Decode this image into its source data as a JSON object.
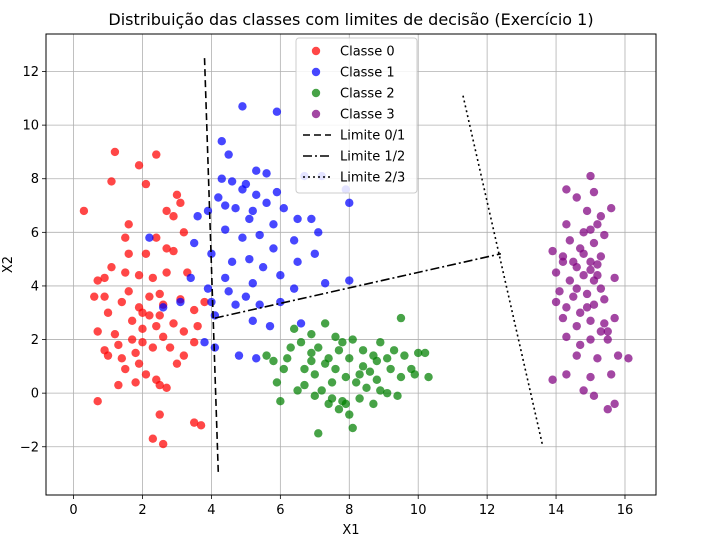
{
  "chart_data": {
    "type": "scatter",
    "title": "Distribuição das classes com limites de decisão (Exercício 1)",
    "xlabel": "X1",
    "ylabel": "X2",
    "xlim": [
      -0.8,
      16.9
    ],
    "ylim": [
      -3.8,
      13.4
    ],
    "xticks": [
      0,
      2,
      4,
      6,
      8,
      10,
      12,
      14,
      16
    ],
    "yticks": [
      -2,
      0,
      2,
      4,
      6,
      8,
      10,
      12
    ],
    "grid": true,
    "legend_position": "top-center",
    "series": [
      {
        "name": "Classe 0",
        "color": "#ff0000",
        "points": [
          [
            0.3,
            6.8
          ],
          [
            1.2,
            9.0
          ],
          [
            1.9,
            8.5
          ],
          [
            2.4,
            8.9
          ],
          [
            1.1,
            7.9
          ],
          [
            2.1,
            7.8
          ],
          [
            3.0,
            7.4
          ],
          [
            2.7,
            6.8
          ],
          [
            1.6,
            6.3
          ],
          [
            1.5,
            5.8
          ],
          [
            2.4,
            5.8
          ],
          [
            2.7,
            5.4
          ],
          [
            2.1,
            5.2
          ],
          [
            1.9,
            4.4
          ],
          [
            1.5,
            4.5
          ],
          [
            1.1,
            4.7
          ],
          [
            0.9,
            4.3
          ],
          [
            0.7,
            4.2
          ],
          [
            0.6,
            3.6
          ],
          [
            2.7,
            4.5
          ],
          [
            2.5,
            3.7
          ],
          [
            2.2,
            3.6
          ],
          [
            1.9,
            3.2
          ],
          [
            1.4,
            3.4
          ],
          [
            1.0,
            3.0
          ],
          [
            0.7,
            2.3
          ],
          [
            1.2,
            2.2
          ],
          [
            1.7,
            2.7
          ],
          [
            2.0,
            2.4
          ],
          [
            2.5,
            2.9
          ],
          [
            2.9,
            2.6
          ],
          [
            3.2,
            2.3
          ],
          [
            2.6,
            2.1
          ],
          [
            2.3,
            1.7
          ],
          [
            1.8,
            1.5
          ],
          [
            1.4,
            1.3
          ],
          [
            0.9,
            1.6
          ],
          [
            1.0,
            1.4
          ],
          [
            1.5,
            0.9
          ],
          [
            2.1,
            0.7
          ],
          [
            2.5,
            0.3
          ],
          [
            2.7,
            0.2
          ],
          [
            1.8,
            0.4
          ],
          [
            1.3,
            0.3
          ],
          [
            0.7,
            -0.3
          ],
          [
            2.5,
            -0.8
          ],
          [
            2.3,
            -1.7
          ],
          [
            2.6,
            -1.9
          ],
          [
            3.5,
            -1.1
          ],
          [
            3.7,
            -1.2
          ],
          [
            3.5,
            1.9
          ],
          [
            3.2,
            1.4
          ],
          [
            3.6,
            2.5
          ],
          [
            3.5,
            3.1
          ],
          [
            3.1,
            3.5
          ],
          [
            3.3,
            4.5
          ],
          [
            2.9,
            5.3
          ],
          [
            3.2,
            6.0
          ],
          [
            2.9,
            6.6
          ],
          [
            3.1,
            7.1
          ],
          [
            2.0,
            3.0
          ],
          [
            1.7,
            2.0
          ],
          [
            2.2,
            2.9
          ],
          [
            2.6,
            3.3
          ],
          [
            1.9,
            1.1
          ],
          [
            1.3,
            1.8
          ],
          [
            2.8,
            1.7
          ],
          [
            2.3,
            4.3
          ],
          [
            0.9,
            3.6
          ],
          [
            1.6,
            5.2
          ],
          [
            2.0,
            1.9
          ],
          [
            2.4,
            0.5
          ],
          [
            3.0,
            1.1
          ],
          [
            1.6,
            3.8
          ],
          [
            2.4,
            2.5
          ],
          [
            3.8,
            3.4
          ]
        ]
      },
      {
        "name": "Classe 1",
        "color": "#0000ff",
        "points": [
          [
            4.9,
            10.7
          ],
          [
            5.9,
            10.5
          ],
          [
            4.3,
            9.4
          ],
          [
            4.5,
            8.9
          ],
          [
            4.3,
            8.0
          ],
          [
            4.6,
            7.9
          ],
          [
            5.3,
            8.3
          ],
          [
            5.6,
            8.2
          ],
          [
            6.7,
            8.1
          ],
          [
            7.2,
            8.1
          ],
          [
            5.0,
            7.8
          ],
          [
            5.3,
            7.4
          ],
          [
            5.6,
            7.1
          ],
          [
            5.9,
            7.5
          ],
          [
            4.2,
            7.3
          ],
          [
            3.9,
            6.8
          ],
          [
            4.7,
            6.9
          ],
          [
            5.1,
            6.5
          ],
          [
            5.8,
            6.3
          ],
          [
            6.1,
            6.9
          ],
          [
            6.5,
            6.5
          ],
          [
            6.9,
            6.5
          ],
          [
            7.1,
            6.0
          ],
          [
            4.4,
            6.1
          ],
          [
            4.9,
            5.8
          ],
          [
            5.4,
            5.9
          ],
          [
            5.8,
            5.4
          ],
          [
            6.4,
            5.7
          ],
          [
            7.0,
            5.2
          ],
          [
            3.5,
            5.6
          ],
          [
            4.0,
            5.2
          ],
          [
            4.6,
            4.9
          ],
          [
            5.1,
            5.0
          ],
          [
            5.5,
            4.7
          ],
          [
            6.0,
            4.4
          ],
          [
            6.5,
            4.9
          ],
          [
            3.4,
            4.3
          ],
          [
            3.9,
            3.9
          ],
          [
            4.5,
            3.8
          ],
          [
            5.0,
            3.6
          ],
          [
            5.4,
            3.3
          ],
          [
            6.0,
            3.4
          ],
          [
            6.6,
            2.6
          ],
          [
            7.3,
            4.1
          ],
          [
            8.0,
            4.2
          ],
          [
            4.1,
            2.9
          ],
          [
            4.7,
            3.3
          ],
          [
            5.2,
            2.7
          ],
          [
            5.7,
            2.5
          ],
          [
            4.1,
            1.7
          ],
          [
            4.8,
            1.4
          ],
          [
            5.3,
            1.3
          ],
          [
            4.0,
            3.4
          ],
          [
            2.6,
            3.2
          ],
          [
            4.4,
            7.0
          ],
          [
            5.2,
            6.8
          ],
          [
            4.9,
            7.6
          ],
          [
            3.6,
            6.6
          ],
          [
            2.2,
            5.8
          ],
          [
            7.9,
            7.6
          ],
          [
            8.0,
            7.1
          ],
          [
            3.8,
            1.9
          ],
          [
            4.4,
            4.3
          ],
          [
            5.2,
            4.1
          ],
          [
            6.4,
            3.9
          ],
          [
            3.1,
            3.4
          ]
        ]
      },
      {
        "name": "Classe 2",
        "color": "#008000",
        "points": [
          [
            5.6,
            1.4
          ],
          [
            5.8,
            1.2
          ],
          [
            5.9,
            0.4
          ],
          [
            6.0,
            -0.3
          ],
          [
            6.3,
            1.7
          ],
          [
            6.6,
            1.9
          ],
          [
            6.4,
            2.4
          ],
          [
            6.9,
            2.2
          ],
          [
            7.1,
            1.7
          ],
          [
            7.3,
            2.6
          ],
          [
            7.6,
            2.1
          ],
          [
            7.8,
            1.9
          ],
          [
            8.1,
            2.0
          ],
          [
            8.4,
            1.6
          ],
          [
            8.7,
            1.4
          ],
          [
            8.9,
            1.9
          ],
          [
            9.3,
            1.6
          ],
          [
            9.6,
            1.4
          ],
          [
            10.0,
            1.5
          ],
          [
            10.3,
            0.6
          ],
          [
            10.2,
            1.5
          ],
          [
            9.9,
            0.7
          ],
          [
            9.5,
            0.6
          ],
          [
            9.2,
            0.9
          ],
          [
            8.8,
            0.5
          ],
          [
            8.5,
            0.2
          ],
          [
            8.2,
            0.4
          ],
          [
            7.9,
            0.6
          ],
          [
            7.6,
            0.9
          ],
          [
            7.3,
            1.1
          ],
          [
            7.0,
            0.7
          ],
          [
            6.7,
            0.3
          ],
          [
            6.5,
            0.1
          ],
          [
            7.2,
            0.1
          ],
          [
            7.5,
            -0.2
          ],
          [
            7.9,
            -0.4
          ],
          [
            8.3,
            -0.2
          ],
          [
            8.7,
            -0.4
          ],
          [
            9.1,
            0.0
          ],
          [
            9.4,
            -0.1
          ],
          [
            7.7,
            -0.6
          ],
          [
            8.0,
            -0.8
          ],
          [
            8.1,
            -1.3
          ],
          [
            7.1,
            -1.5
          ],
          [
            6.9,
            1.2
          ],
          [
            6.7,
            0.9
          ],
          [
            7.4,
            1.3
          ],
          [
            7.7,
            1.6
          ],
          [
            8.4,
            1.0
          ],
          [
            8.8,
            1.2
          ],
          [
            9.1,
            1.3
          ],
          [
            9.5,
            2.8
          ],
          [
            7.5,
            0.4
          ],
          [
            8.6,
            0.8
          ],
          [
            6.2,
            1.3
          ],
          [
            6.1,
            0.9
          ],
          [
            7.0,
            -0.1
          ],
          [
            8.3,
            0.7
          ],
          [
            9.8,
            0.9
          ],
          [
            8.0,
            1.3
          ],
          [
            7.8,
            -0.3
          ],
          [
            7.4,
            -0.4
          ],
          [
            8.9,
            0.1
          ],
          [
            6.9,
            1.5
          ]
        ]
      },
      {
        "name": "Classe 3",
        "color": "#800080",
        "points": [
          [
            15.0,
            8.1
          ],
          [
            14.3,
            7.6
          ],
          [
            14.6,
            7.3
          ],
          [
            15.1,
            7.5
          ],
          [
            14.9,
            6.8
          ],
          [
            15.3,
            6.6
          ],
          [
            15.6,
            6.9
          ],
          [
            14.3,
            6.3
          ],
          [
            14.8,
            6.0
          ],
          [
            15.2,
            6.3
          ],
          [
            14.4,
            5.7
          ],
          [
            14.7,
            5.4
          ],
          [
            15.1,
            5.6
          ],
          [
            15.4,
            5.9
          ],
          [
            13.9,
            5.3
          ],
          [
            14.2,
            4.9
          ],
          [
            14.6,
            4.7
          ],
          [
            15.0,
            4.9
          ],
          [
            15.3,
            5.1
          ],
          [
            14.0,
            4.5
          ],
          [
            14.4,
            4.2
          ],
          [
            14.8,
            4.4
          ],
          [
            15.1,
            4.2
          ],
          [
            15.7,
            4.3
          ],
          [
            14.1,
            3.8
          ],
          [
            14.5,
            3.6
          ],
          [
            14.9,
            3.7
          ],
          [
            15.3,
            3.9
          ],
          [
            14.0,
            3.4
          ],
          [
            14.3,
            3.2
          ],
          [
            14.7,
            3.0
          ],
          [
            15.1,
            3.3
          ],
          [
            15.4,
            3.5
          ],
          [
            14.2,
            2.8
          ],
          [
            14.6,
            2.5
          ],
          [
            15.0,
            2.7
          ],
          [
            15.4,
            2.6
          ],
          [
            15.7,
            2.8
          ],
          [
            14.3,
            2.1
          ],
          [
            14.7,
            1.8
          ],
          [
            15.0,
            2.0
          ],
          [
            15.3,
            2.3
          ],
          [
            15.5,
            2.0
          ],
          [
            14.6,
            1.4
          ],
          [
            15.2,
            1.3
          ],
          [
            15.8,
            1.4
          ],
          [
            16.1,
            1.3
          ],
          [
            14.3,
            0.7
          ],
          [
            15.0,
            0.6
          ],
          [
            15.6,
            0.7
          ],
          [
            13.9,
            0.5
          ],
          [
            14.8,
            0.1
          ],
          [
            15.1,
            -0.1
          ],
          [
            15.5,
            -0.6
          ],
          [
            15.7,
            -0.4
          ],
          [
            15.0,
            4.6
          ],
          [
            14.8,
            5.2
          ],
          [
            14.5,
            4.9
          ],
          [
            15.2,
            4.8
          ],
          [
            14.9,
            3.2
          ],
          [
            15.0,
            6.1
          ],
          [
            14.6,
            3.9
          ],
          [
            15.2,
            4.4
          ],
          [
            14.2,
            5.1
          ],
          [
            15.5,
            2.3
          ]
        ]
      },
      {
        "name": "Limite 0/1",
        "color": "#000000",
        "dash": "7,4",
        "line": [
          [
            3.8,
            12.5
          ],
          [
            4.2,
            -3.0
          ]
        ]
      },
      {
        "name": "Limite 1/2",
        "color": "#000000",
        "dash": "9,3,2,3",
        "line": [
          [
            4.1,
            2.8
          ],
          [
            12.4,
            5.2
          ]
        ]
      },
      {
        "name": "Limite 2/3",
        "color": "#000000",
        "dash": "2,3",
        "line": [
          [
            11.3,
            11.1
          ],
          [
            13.6,
            -1.9
          ]
        ]
      }
    ]
  }
}
